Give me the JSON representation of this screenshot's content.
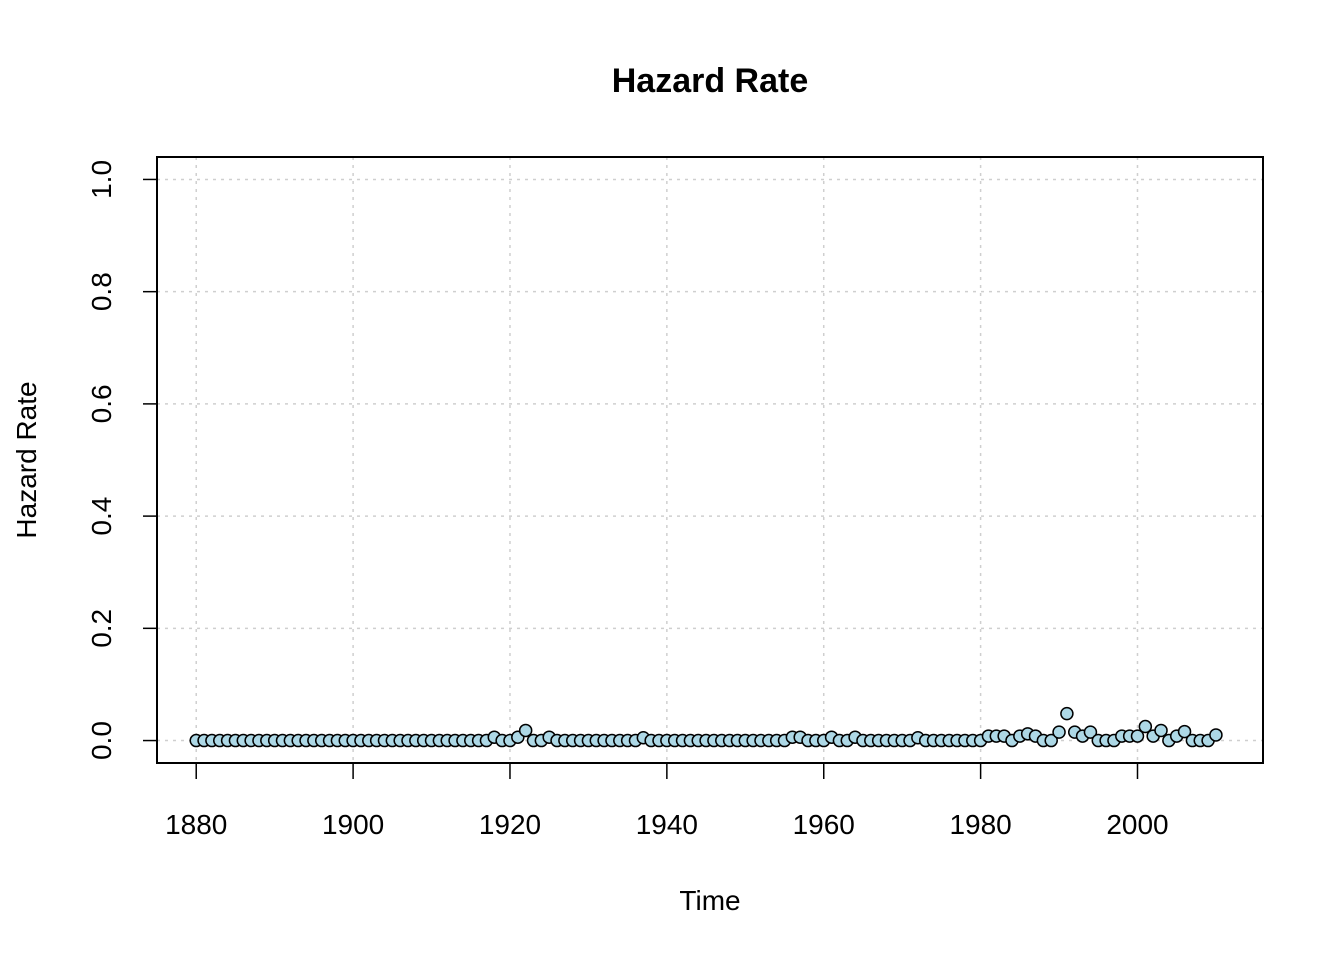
{
  "chart_data": {
    "type": "scatter",
    "title": "Hazard Rate",
    "xlabel": "Time",
    "ylabel": "Hazard Rate",
    "xlim": [
      1875,
      2016
    ],
    "ylim": [
      -0.04,
      1.04
    ],
    "x_ticks": [
      1880,
      1900,
      1920,
      1940,
      1960,
      1980,
      2000
    ],
    "x_tick_labels": [
      "1880",
      "1900",
      "1920",
      "1940",
      "1960",
      "1980",
      "2000"
    ],
    "y_ticks": [
      0.0,
      0.2,
      0.4,
      0.6,
      0.8,
      1.0
    ],
    "y_tick_labels": [
      "0.0",
      "0.2",
      "0.4",
      "0.6",
      "0.8",
      "1.0"
    ],
    "grid": true,
    "point_color": "#add8e6",
    "point_stroke": "#000000",
    "series": [
      {
        "x": [
          1880,
          1881,
          1882,
          1883,
          1884,
          1885,
          1886,
          1887,
          1888,
          1889,
          1890,
          1891,
          1892,
          1893,
          1894,
          1895,
          1896,
          1897,
          1898,
          1899,
          1900,
          1901,
          1902,
          1903,
          1904,
          1905,
          1906,
          1907,
          1908,
          1909,
          1910,
          1911,
          1912,
          1913,
          1914,
          1915,
          1916,
          1917,
          1918,
          1919,
          1920,
          1921,
          1922,
          1923,
          1924,
          1925,
          1926,
          1927,
          1928,
          1929,
          1930,
          1931,
          1932,
          1933,
          1934,
          1935,
          1936,
          1937,
          1938,
          1939,
          1940,
          1941,
          1942,
          1943,
          1944,
          1945,
          1946,
          1947,
          1948,
          1949,
          1950,
          1951,
          1952,
          1953,
          1954,
          1955,
          1956,
          1957,
          1958,
          1959,
          1960,
          1961,
          1962,
          1963,
          1964,
          1965,
          1966,
          1967,
          1968,
          1969,
          1970,
          1971,
          1972,
          1973,
          1974,
          1975,
          1976,
          1977,
          1978,
          1979,
          1980,
          1981,
          1982,
          1983,
          1984,
          1985,
          1986,
          1987,
          1988,
          1989,
          1990,
          1991,
          1992,
          1993,
          1994,
          1995,
          1996,
          1997,
          1998,
          1999,
          2000,
          2001,
          2002,
          2003,
          2004,
          2005,
          2006,
          2007,
          2008,
          2009,
          2010
        ],
        "y": [
          0,
          0,
          0,
          0,
          0,
          0,
          0,
          0,
          0,
          0,
          0,
          0,
          0,
          0,
          0,
          0,
          0,
          0,
          0,
          0,
          0,
          0,
          0,
          0,
          0,
          0,
          0,
          0,
          0,
          0,
          0,
          0,
          0,
          0,
          0,
          0,
          0,
          0,
          0.006,
          0,
          0,
          0.006,
          0.018,
          0,
          0,
          0.006,
          0,
          0,
          0,
          0,
          0,
          0,
          0,
          0,
          0,
          0,
          0,
          0.005,
          0,
          0,
          0,
          0,
          0,
          0,
          0,
          0,
          0,
          0,
          0,
          0,
          0,
          0,
          0,
          0,
          0,
          0,
          0.006,
          0.006,
          0,
          0,
          0,
          0.006,
          0,
          0,
          0.006,
          0,
          0,
          0,
          0,
          0,
          0,
          0,
          0.005,
          0,
          0,
          0,
          0,
          0,
          0,
          0,
          0,
          0.008,
          0.008,
          0.008,
          0,
          0.008,
          0.012,
          0.008,
          0,
          0,
          0.015,
          0.048,
          0.015,
          0.008,
          0.015,
          0,
          0,
          0,
          0.008,
          0.008,
          0.008,
          0.025,
          0.008,
          0.018,
          0,
          0.008,
          0.016,
          0,
          0,
          0,
          0.01
        ]
      }
    ]
  }
}
